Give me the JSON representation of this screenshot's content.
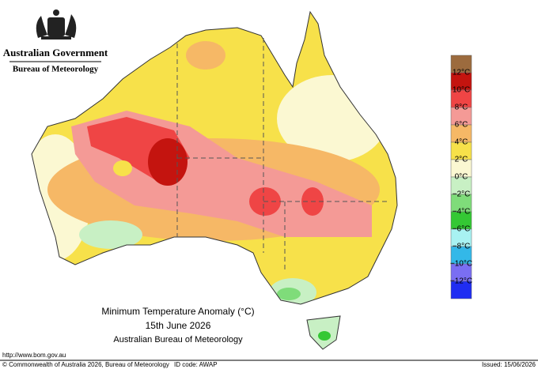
{
  "header": {
    "government": "Australian Government",
    "agency": "Bureau of Meteorology"
  },
  "map": {
    "title": "Minimum Temperature Anomaly (°C)",
    "date": "15th June 2026",
    "source": "Australian Bureau of Meteorology"
  },
  "legend": {
    "labels": [
      "12°C",
      "10°C",
      "8°C",
      "6°C",
      "4°C",
      "2°C",
      "0°C",
      "−2°C",
      "−4°C",
      "−6°C",
      "−8°C",
      "−10°C",
      "−12°C"
    ],
    "colors": [
      "#9c6b3e",
      "#c4140f",
      "#ef4545",
      "#f49a96",
      "#f6b866",
      "#f7e14a",
      "#fbf8d2",
      "#c8f0c4",
      "#7fdc7a",
      "#34c834",
      "#a8f2f2",
      "#33b8e8",
      "#7a6ef2",
      "#1f2df2"
    ]
  },
  "footer": {
    "url": "http://www.bom.gov.au",
    "copyright": "© Commonwealth of Australia 2026, Bureau of Meteorology",
    "id": "ID code: AWAP",
    "issued": "Issued: 15/06/2026"
  }
}
